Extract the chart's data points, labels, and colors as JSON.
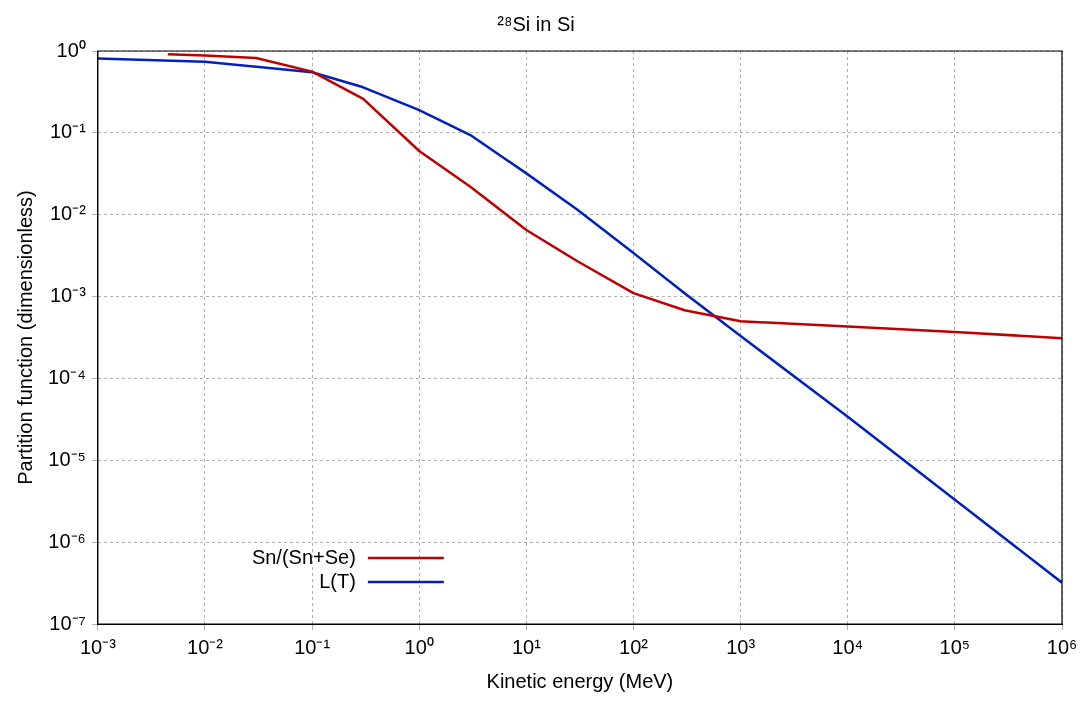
{
  "chart_data": {
    "type": "line",
    "title": "²⁸Si in Si",
    "xlabel": "Kinetic energy (MeV)",
    "ylabel": "Partition function (dimensionless)",
    "log": "xy",
    "grid": true,
    "legend": "bottom left",
    "marker": "none",
    "line_style": "solid",
    "xlim": [
      0.001,
      1000000
    ],
    "ylim": [
      1e-07,
      1
    ],
    "xticks": [
      {
        "value": 0.001,
        "label": "10⁻³"
      },
      {
        "value": 0.01,
        "label": "10⁻²"
      },
      {
        "value": 0.1,
        "label": "10⁻¹"
      },
      {
        "value": 1,
        "label": "10⁰"
      },
      {
        "value": 10,
        "label": "10¹"
      },
      {
        "value": 100,
        "label": "10²"
      },
      {
        "value": 1000,
        "label": "10³"
      },
      {
        "value": 10000,
        "label": "10⁴"
      },
      {
        "value": 100000,
        "label": "10⁵"
      },
      {
        "value": 1000000,
        "label": "10⁶"
      }
    ],
    "yticks": [
      {
        "value": 1e-07,
        "label": "10⁻⁷"
      },
      {
        "value": 1e-06,
        "label": "10⁻⁶"
      },
      {
        "value": 1e-05,
        "label": "10⁻⁵"
      },
      {
        "value": 0.0001,
        "label": "10⁻⁴"
      },
      {
        "value": 0.001,
        "label": "10⁻³"
      },
      {
        "value": 0.01,
        "label": "10⁻²"
      },
      {
        "value": 0.1,
        "label": "10⁻¹"
      },
      {
        "value": 1,
        "label": "10⁰"
      }
    ],
    "series": [
      {
        "name": "Sn/(Sn+Se)",
        "color": "#c00000",
        "x": [
          0.0045,
          0.01,
          0.03,
          0.1,
          0.3,
          1,
          3,
          10,
          30,
          100,
          300,
          1000,
          10000,
          100000,
          1000000
        ],
        "values": [
          0.91,
          0.88,
          0.82,
          0.56,
          0.26,
          0.06,
          0.022,
          0.0065,
          0.0027,
          0.0011,
          0.00068,
          0.0005,
          0.00043,
          0.00037,
          0.00031
        ]
      },
      {
        "name": "L(T)",
        "color": "#0020c0",
        "x": [
          0.001,
          0.01,
          0.1,
          0.3,
          1,
          3,
          10,
          30,
          100,
          300,
          1000,
          10000,
          100000,
          1000000
        ],
        "values": [
          0.81,
          0.74,
          0.55,
          0.36,
          0.19,
          0.094,
          0.032,
          0.0115,
          0.0034,
          0.0011,
          0.00033,
          3.4e-05,
          3.3e-06,
          3.2e-07
        ]
      }
    ]
  }
}
